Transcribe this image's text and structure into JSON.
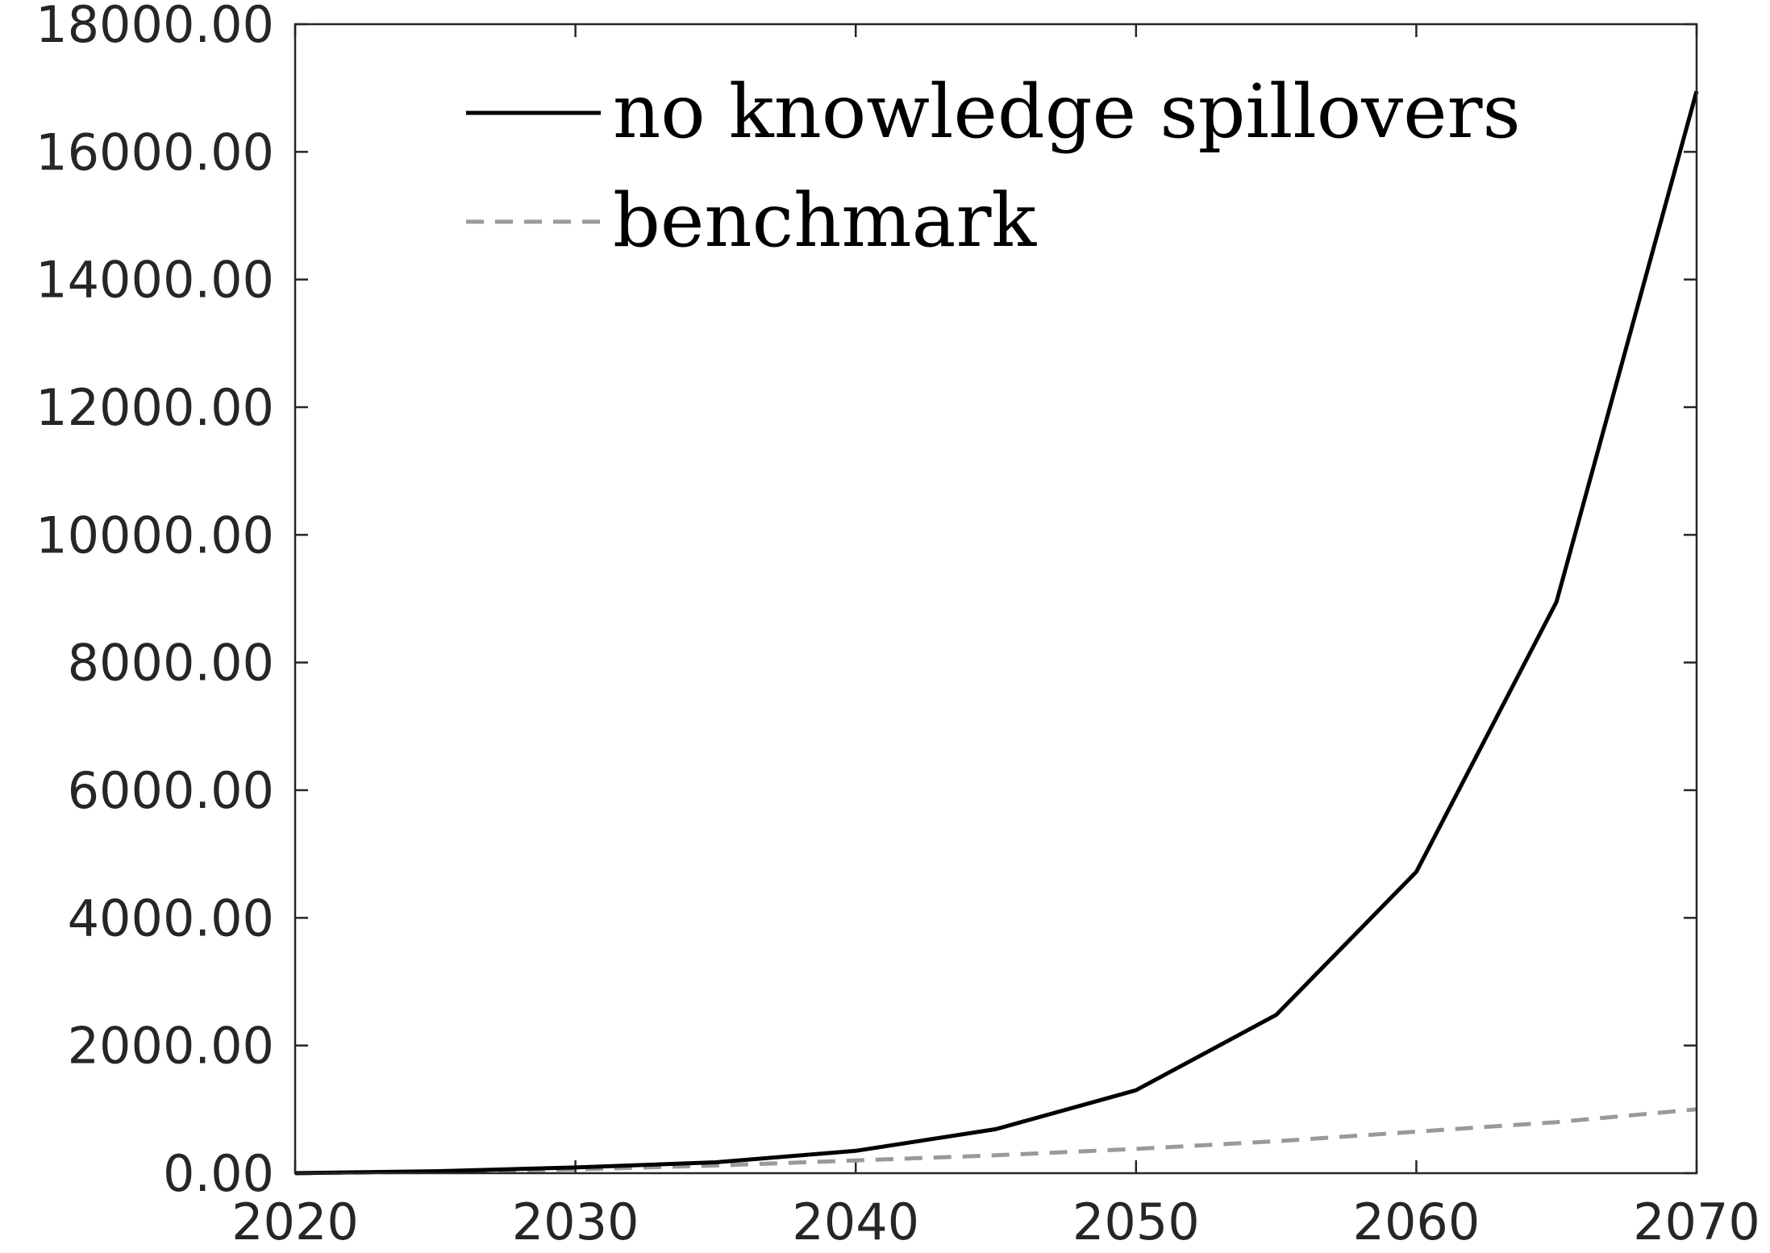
{
  "chart_data": {
    "type": "line",
    "title": "",
    "xlabel": "",
    "ylabel": "",
    "xlim": [
      2020,
      2070
    ],
    "ylim": [
      0,
      18000
    ],
    "grid": false,
    "legend_position": "top-left",
    "x_ticks": [
      2020,
      2030,
      2040,
      2050,
      2060,
      2070
    ],
    "x_tick_labels": [
      "2020",
      "2030",
      "2040",
      "2050",
      "2060",
      "2070"
    ],
    "y_ticks": [
      0,
      2000,
      4000,
      6000,
      8000,
      10000,
      12000,
      14000,
      16000,
      18000
    ],
    "y_tick_labels": [
      "0.00",
      "2000.00",
      "4000.00",
      "6000.00",
      "8000.00",
      "10000.00",
      "12000.00",
      "14000.00",
      "16000.00",
      "18000.00"
    ],
    "series": [
      {
        "name": "no knowledge spillovers",
        "color": "#000000",
        "dash": "solid",
        "x": [
          2020,
          2025,
          2030,
          2035,
          2040,
          2045,
          2050,
          2055,
          2060,
          2065,
          2070
        ],
        "values": [
          0,
          30,
          90,
          170,
          350,
          690,
          1300,
          2480,
          4720,
          8950,
          16950
        ]
      },
      {
        "name": "benchmark",
        "color": "#999999",
        "dash": "dashed",
        "x": [
          2020,
          2025,
          2030,
          2035,
          2040,
          2045,
          2050,
          2055,
          2060,
          2065,
          2070
        ],
        "values": [
          0,
          20,
          60,
          120,
          200,
          280,
          380,
          500,
          650,
          800,
          1000
        ]
      }
    ]
  }
}
